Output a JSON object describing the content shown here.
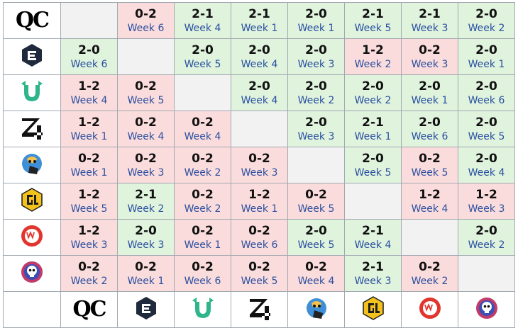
{
  "teams": [
    {
      "id": "qc",
      "icon": "qc-logo-icon",
      "logo_text": "QC"
    },
    {
      "id": "eg",
      "icon": "eg-logo-icon"
    },
    {
      "id": "ultra",
      "icon": "u-logo-icon"
    },
    {
      "id": "z4",
      "icon": "z4-logo-icon"
    },
    {
      "id": "mascot",
      "icon": "mascot-logo-icon"
    },
    {
      "id": "gl",
      "icon": "gl-logo-icon"
    },
    {
      "id": "wg",
      "icon": "wg-logo-icon"
    },
    {
      "id": "skull",
      "icon": "skull-logo-icon"
    }
  ],
  "colors": {
    "win": "#dff3dd",
    "loss": "#fbdcdc",
    "empty": "#f2f2f2",
    "week": "#2a4fa0"
  },
  "matrix": [
    [
      null,
      {
        "s": "0-2",
        "w": "Week 6"
      },
      {
        "s": "2-1",
        "w": "Week 4"
      },
      {
        "s": "2-1",
        "w": "Week 1"
      },
      {
        "s": "2-0",
        "w": "Week 1"
      },
      {
        "s": "2-1",
        "w": "Week 5"
      },
      {
        "s": "2-1",
        "w": "Week 3"
      },
      {
        "s": "2-0",
        "w": "Week 2"
      }
    ],
    [
      {
        "s": "2-0",
        "w": "Week 6"
      },
      null,
      {
        "s": "2-0",
        "w": "Week 5"
      },
      {
        "s": "2-0",
        "w": "Week 4"
      },
      {
        "s": "2-0",
        "w": "Week 3"
      },
      {
        "s": "1-2",
        "w": "Week 2"
      },
      {
        "s": "0-2",
        "w": "Week 3"
      },
      {
        "s": "2-0",
        "w": "Week 1"
      }
    ],
    [
      {
        "s": "1-2",
        "w": "Week 4"
      },
      {
        "s": "0-2",
        "w": "Week 5"
      },
      null,
      {
        "s": "2-0",
        "w": "Week 4"
      },
      {
        "s": "2-0",
        "w": "Week 2"
      },
      {
        "s": "2-0",
        "w": "Week 2"
      },
      {
        "s": "2-0",
        "w": "Week 1"
      },
      {
        "s": "2-0",
        "w": "Week 6"
      }
    ],
    [
      {
        "s": "1-2",
        "w": "Week 1"
      },
      {
        "s": "0-2",
        "w": "Week 4"
      },
      {
        "s": "0-2",
        "w": "Week 4"
      },
      null,
      {
        "s": "2-0",
        "w": "Week 3"
      },
      {
        "s": "2-1",
        "w": "Week 1"
      },
      {
        "s": "2-0",
        "w": "Week 6"
      },
      {
        "s": "2-0",
        "w": "Week 5"
      }
    ],
    [
      {
        "s": "0-2",
        "w": "Week 1"
      },
      {
        "s": "0-2",
        "w": "Week 3"
      },
      {
        "s": "0-2",
        "w": "Week 2"
      },
      {
        "s": "0-2",
        "w": "Week 3"
      },
      null,
      {
        "s": "2-0",
        "w": "Week 5"
      },
      {
        "s": "0-2",
        "w": "Week 5"
      },
      {
        "s": "2-0",
        "w": "Week 4"
      }
    ],
    [
      {
        "s": "1-2",
        "w": "Week 5"
      },
      {
        "s": "2-1",
        "w": "Week 2"
      },
      {
        "s": "0-2",
        "w": "Week 2"
      },
      {
        "s": "1-2",
        "w": "Week 1"
      },
      {
        "s": "0-2",
        "w": "Week 5"
      },
      null,
      {
        "s": "1-2",
        "w": "Week 4"
      },
      {
        "s": "1-2",
        "w": "Week 3"
      }
    ],
    [
      {
        "s": "1-2",
        "w": "Week 3"
      },
      {
        "s": "2-0",
        "w": "Week 3"
      },
      {
        "s": "0-2",
        "w": "Week 1"
      },
      {
        "s": "0-2",
        "w": "Week 6"
      },
      {
        "s": "2-0",
        "w": "Week 5"
      },
      {
        "s": "2-1",
        "w": "Week 4"
      },
      null,
      {
        "s": "2-0",
        "w": "Week 2"
      }
    ],
    [
      {
        "s": "0-2",
        "w": "Week 2"
      },
      {
        "s": "0-2",
        "w": "Week 1"
      },
      {
        "s": "0-2",
        "w": "Week 6"
      },
      {
        "s": "0-2",
        "w": "Week 5"
      },
      {
        "s": "0-2",
        "w": "Week 4"
      },
      {
        "s": "2-1",
        "w": "Week 3"
      },
      {
        "s": "0-2",
        "w": "Week 2"
      },
      null
    ]
  ]
}
